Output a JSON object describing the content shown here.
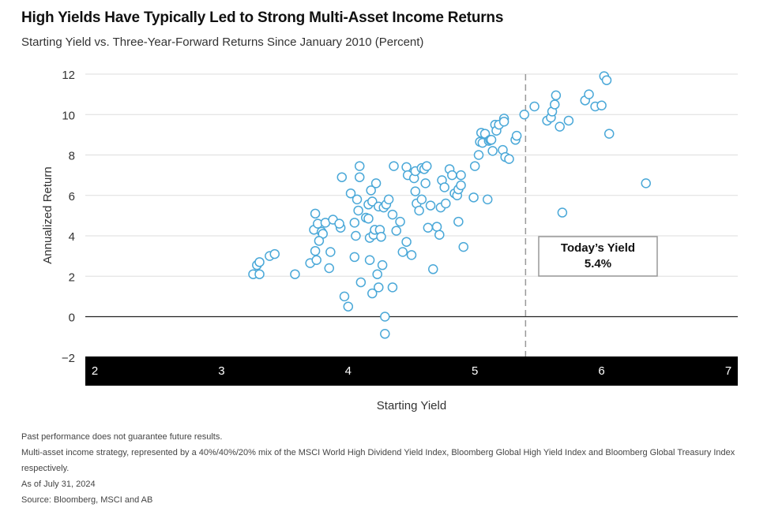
{
  "title": "High Yields Have Typically Led to Strong Multi-Asset Income Returns",
  "subtitle": "Starting Yield vs. Three-Year-Forward Returns Since January 2010 (Percent)",
  "footnotes": [
    "Past performance does not guarantee future results.",
    "Multi-asset income strategy, represented by a 40%/40%/20% mix of the MSCI World High Dividend Yield Index, Bloomberg Global High Yield Index and Bloomberg Global Treasury Index",
    "respectively.",
    "As of July 31, 2024",
    "Source: Bloomberg, MSCI and AB"
  ],
  "colors": {
    "marker_stroke": "#4aa8d8",
    "axis_bar": "#000000",
    "grid": "#dddddd",
    "reference_line": "#999999"
  },
  "chart_data": {
    "type": "scatter",
    "xlabel": "Starting Yield",
    "ylabel": "Annualized Return",
    "xlim": [
      2,
      7
    ],
    "ylim": [
      -2,
      12
    ],
    "x_ticks": [
      2,
      3,
      4,
      5,
      6,
      7
    ],
    "y_ticks": [
      12,
      10,
      8,
      6,
      4,
      2,
      0,
      -2
    ],
    "y_tick_labels": [
      "12",
      "10",
      "8",
      "6",
      "4",
      "2",
      "0",
      "−2"
    ],
    "grid": true,
    "reference_line": {
      "x": 5.4,
      "style": "dashed"
    },
    "annotation": {
      "line1": "Today’s Yield",
      "line2": "5.4%"
    },
    "points": [
      [
        3.25,
        2.1
      ],
      [
        3.28,
        2.55
      ],
      [
        3.3,
        2.7
      ],
      [
        3.3,
        2.1
      ],
      [
        3.38,
        3.0
      ],
      [
        3.42,
        3.1
      ],
      [
        3.58,
        2.1
      ],
      [
        3.7,
        2.65
      ],
      [
        3.73,
        4.3
      ],
      [
        3.74,
        5.1
      ],
      [
        3.76,
        4.6
      ],
      [
        3.75,
        2.8
      ],
      [
        3.74,
        3.25
      ],
      [
        3.79,
        4.2
      ],
      [
        3.8,
        4.1
      ],
      [
        3.77,
        3.75
      ],
      [
        3.82,
        4.65
      ],
      [
        3.86,
        3.2
      ],
      [
        3.88,
        4.8
      ],
      [
        3.85,
        2.4
      ],
      [
        3.94,
        4.4
      ],
      [
        3.93,
        4.6
      ],
      [
        3.95,
        6.9
      ],
      [
        3.97,
        1.0
      ],
      [
        4.0,
        0.5
      ],
      [
        4.02,
        6.1
      ],
      [
        4.05,
        2.95
      ],
      [
        4.05,
        4.65
      ],
      [
        4.06,
        4.0
      ],
      [
        4.07,
        5.8
      ],
      [
        4.08,
        5.25
      ],
      [
        4.09,
        7.45
      ],
      [
        4.09,
        6.9
      ],
      [
        4.1,
        1.7
      ],
      [
        4.14,
        4.9
      ],
      [
        4.16,
        5.55
      ],
      [
        4.16,
        4.85
      ],
      [
        4.17,
        3.9
      ],
      [
        4.17,
        2.8
      ],
      [
        4.18,
        6.25
      ],
      [
        4.19,
        5.7
      ],
      [
        4.19,
        1.15
      ],
      [
        4.2,
        4.05
      ],
      [
        4.21,
        4.3
      ],
      [
        4.22,
        6.6
      ],
      [
        4.23,
        2.1
      ],
      [
        4.24,
        1.45
      ],
      [
        4.24,
        5.45
      ],
      [
        4.25,
        4.3
      ],
      [
        4.26,
        3.95
      ],
      [
        4.27,
        2.55
      ],
      [
        4.28,
        5.4
      ],
      [
        4.29,
        0.0
      ],
      [
        4.29,
        -0.85
      ],
      [
        4.3,
        5.55
      ],
      [
        4.32,
        5.8
      ],
      [
        4.35,
        1.45
      ],
      [
        4.35,
        5.05
      ],
      [
        4.36,
        7.45
      ],
      [
        4.38,
        4.25
      ],
      [
        4.41,
        4.7
      ],
      [
        4.43,
        3.2
      ],
      [
        4.46,
        3.7
      ],
      [
        4.46,
        7.4
      ],
      [
        4.47,
        7.0
      ],
      [
        4.5,
        3.05
      ],
      [
        4.52,
        6.85
      ],
      [
        4.53,
        6.2
      ],
      [
        4.53,
        7.2
      ],
      [
        4.54,
        5.6
      ],
      [
        4.56,
        5.25
      ],
      [
        4.58,
        5.8
      ],
      [
        4.58,
        7.35
      ],
      [
        4.6,
        7.3
      ],
      [
        4.61,
        6.6
      ],
      [
        4.62,
        7.45
      ],
      [
        4.63,
        4.4
      ],
      [
        4.65,
        5.5
      ],
      [
        4.67,
        2.35
      ],
      [
        4.7,
        4.45
      ],
      [
        4.72,
        4.05
      ],
      [
        4.73,
        5.4
      ],
      [
        4.74,
        6.75
      ],
      [
        4.76,
        6.4
      ],
      [
        4.77,
        5.6
      ],
      [
        4.8,
        7.3
      ],
      [
        4.82,
        7.0
      ],
      [
        4.84,
        6.1
      ],
      [
        4.86,
        6.0
      ],
      [
        4.87,
        4.7
      ],
      [
        4.87,
        6.3
      ],
      [
        4.89,
        7.0
      ],
      [
        4.89,
        6.5
      ],
      [
        4.91,
        3.45
      ],
      [
        4.99,
        5.9
      ],
      [
        5.0,
        7.45
      ],
      [
        5.03,
        8.0
      ],
      [
        5.04,
        8.65
      ],
      [
        5.05,
        9.1
      ],
      [
        5.06,
        8.6
      ],
      [
        5.08,
        9.05
      ],
      [
        5.1,
        5.8
      ],
      [
        5.11,
        8.7
      ],
      [
        5.12,
        8.75
      ],
      [
        5.13,
        8.75
      ],
      [
        5.14,
        8.2
      ],
      [
        5.16,
        9.5
      ],
      [
        5.17,
        9.2
      ],
      [
        5.19,
        9.5
      ],
      [
        5.22,
        8.25
      ],
      [
        5.23,
        9.8
      ],
      [
        5.23,
        9.65
      ],
      [
        5.24,
        7.9
      ],
      [
        5.27,
        7.8
      ],
      [
        5.32,
        8.75
      ],
      [
        5.33,
        8.95
      ],
      [
        5.39,
        10.0
      ],
      [
        5.47,
        10.4
      ],
      [
        5.57,
        9.7
      ],
      [
        5.6,
        9.85
      ],
      [
        5.61,
        10.15
      ],
      [
        5.63,
        10.5
      ],
      [
        5.64,
        10.95
      ],
      [
        5.67,
        9.4
      ],
      [
        5.69,
        5.15
      ],
      [
        5.74,
        9.7
      ],
      [
        5.87,
        10.7
      ],
      [
        5.9,
        11.0
      ],
      [
        5.95,
        10.4
      ],
      [
        6.0,
        10.45
      ],
      [
        6.02,
        11.9
      ],
      [
        6.04,
        11.7
      ],
      [
        6.06,
        9.05
      ],
      [
        6.35,
        6.6
      ]
    ]
  }
}
